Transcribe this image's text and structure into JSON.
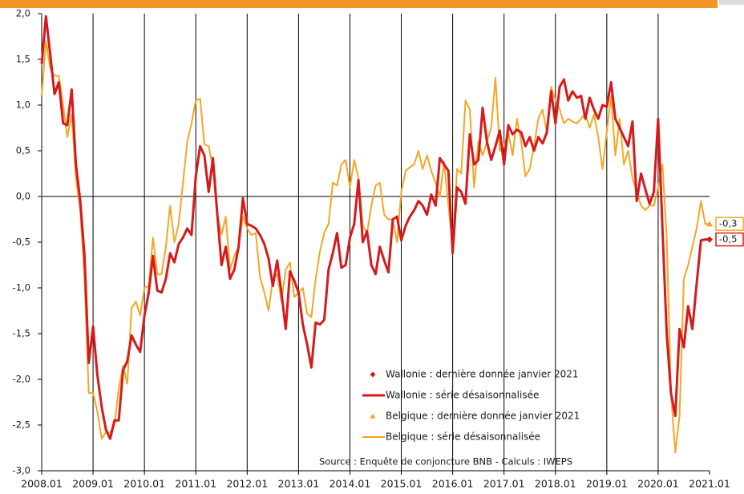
{
  "chart_data": {
    "type": "line",
    "categories": [
      "2008.01",
      null,
      null,
      null,
      null,
      null,
      null,
      null,
      null,
      null,
      null,
      null,
      "2009.01",
      null,
      null,
      null,
      null,
      null,
      null,
      null,
      null,
      null,
      null,
      null,
      "2010.01",
      null,
      null,
      null,
      null,
      null,
      null,
      null,
      null,
      null,
      null,
      null,
      "2011.01",
      null,
      null,
      null,
      null,
      null,
      null,
      null,
      null,
      null,
      null,
      null,
      "2012.01",
      null,
      null,
      null,
      null,
      null,
      null,
      null,
      null,
      null,
      null,
      null,
      "2013.01",
      null,
      null,
      null,
      null,
      null,
      null,
      null,
      null,
      null,
      null,
      null,
      "2014.01",
      null,
      null,
      null,
      null,
      null,
      null,
      null,
      null,
      null,
      null,
      null,
      "2015.01",
      null,
      null,
      null,
      null,
      null,
      null,
      null,
      null,
      null,
      null,
      null,
      "2016.01",
      null,
      null,
      null,
      null,
      null,
      null,
      null,
      null,
      null,
      null,
      null,
      "2017.01",
      null,
      null,
      null,
      null,
      null,
      null,
      null,
      null,
      null,
      null,
      null,
      "2018.01",
      null,
      null,
      null,
      null,
      null,
      null,
      null,
      null,
      null,
      null,
      null,
      "2019.01",
      null,
      null,
      null,
      null,
      null,
      null,
      null,
      null,
      null,
      null,
      null,
      "2020.01",
      null,
      null,
      null,
      null,
      null,
      null,
      null,
      null,
      null,
      null,
      null,
      "2021.01"
    ],
    "series": [
      {
        "name": "Wallonie : série désaisonnalisée",
        "color": "#d7191c",
        "values": [
          1.45,
          1.97,
          1.55,
          1.12,
          1.25,
          0.8,
          0.78,
          1.17,
          0.35,
          -0.05,
          -0.65,
          -1.82,
          -1.42,
          -1.95,
          -2.3,
          -2.55,
          -2.65,
          -2.45,
          -2.45,
          -1.9,
          -1.8,
          -1.52,
          -1.62,
          -1.7,
          -1.3,
          -1.05,
          -0.65,
          -1.03,
          -1.05,
          -0.9,
          -0.62,
          -0.72,
          -0.52,
          -0.45,
          -0.35,
          -0.42,
          0.22,
          0.55,
          0.45,
          0.05,
          0.42,
          -0.18,
          -0.75,
          -0.55,
          -0.9,
          -0.8,
          -0.55,
          -0.02,
          -0.3,
          -0.32,
          -0.35,
          -0.42,
          -0.52,
          -0.68,
          -0.98,
          -0.7,
          -1.05,
          -1.45,
          -0.82,
          -0.92,
          -1.05,
          -1.4,
          -1.62,
          -1.87,
          -1.38,
          -1.4,
          -1.35,
          -0.8,
          -0.62,
          -0.4,
          -0.78,
          -0.75,
          -0.45,
          -0.3,
          0.18,
          -0.5,
          -0.38,
          -0.75,
          -0.85,
          -0.55,
          -0.7,
          -0.83,
          -0.25,
          -0.22,
          -0.48,
          -0.32,
          -0.22,
          -0.15,
          -0.05,
          -0.1,
          -0.2,
          0.02,
          -0.1,
          0.42,
          0.35,
          0.28,
          -0.62,
          0.1,
          0.05,
          -0.08,
          0.68,
          0.35,
          0.4,
          0.97,
          0.6,
          0.4,
          0.55,
          0.72,
          0.35,
          0.78,
          0.68,
          0.73,
          0.7,
          0.55,
          0.65,
          0.5,
          0.65,
          0.58,
          0.7,
          1.15,
          0.8,
          1.2,
          1.28,
          1.05,
          1.15,
          1.08,
          1.1,
          0.85,
          1.08,
          0.95,
          0.85,
          1.0,
          0.98,
          1.25,
          0.85,
          0.75,
          0.65,
          0.55,
          0.82,
          -0.05,
          0.25,
          0.08,
          -0.08,
          0.05,
          0.85,
          -0.35,
          -1.5,
          -2.15,
          -2.4,
          -1.45,
          -1.65,
          -1.2,
          -1.45,
          -0.95,
          -0.48,
          -0.47,
          -0.47
        ]
      },
      {
        "name": "Belgique : série désaisonnalisée",
        "color": "#f5a623",
        "values": [
          1.1,
          1.7,
          1.4,
          1.32,
          1.32,
          1.0,
          0.65,
          0.9,
          0.2,
          -0.15,
          -0.9,
          -2.15,
          -2.15,
          -2.35,
          -2.65,
          -2.58,
          -2.58,
          -2.5,
          -2.1,
          -1.85,
          -2.05,
          -1.22,
          -1.15,
          -1.3,
          -1.0,
          -0.98,
          -0.45,
          -0.85,
          -0.85,
          -0.55,
          -0.1,
          -0.5,
          -0.3,
          0.15,
          0.6,
          0.8,
          1.05,
          1.07,
          0.57,
          0.55,
          0.32,
          -0.2,
          -0.42,
          -0.22,
          -0.8,
          -0.65,
          -0.55,
          -0.22,
          -0.35,
          -0.42,
          -0.4,
          -0.88,
          -1.05,
          -1.25,
          -0.9,
          -0.85,
          -1.15,
          -0.8,
          -0.72,
          -1.1,
          -1.05,
          -1.0,
          -1.28,
          -1.32,
          -0.9,
          -0.6,
          -0.4,
          -0.3,
          0.15,
          0.12,
          0.35,
          0.4,
          0.1,
          0.4,
          0.2,
          -0.32,
          -0.4,
          -0.1,
          0.12,
          0.15,
          -0.2,
          -0.25,
          -0.25,
          -0.5,
          0.05,
          0.28,
          0.32,
          0.35,
          0.5,
          0.3,
          0.45,
          0.28,
          0.15,
          0.0,
          0.38,
          -0.1,
          -0.55,
          0.3,
          0.25,
          1.05,
          0.95,
          0.1,
          0.6,
          0.45,
          0.6,
          0.75,
          1.3,
          0.5,
          0.55,
          0.7,
          0.45,
          0.85,
          0.6,
          0.22,
          0.3,
          0.55,
          0.85,
          0.95,
          0.7,
          1.2,
          1.05,
          0.95,
          0.8,
          0.85,
          0.82,
          0.8,
          0.85,
          0.9,
          0.75,
          0.9,
          0.65,
          0.3,
          0.7,
          1.1,
          0.45,
          0.85,
          0.35,
          0.5,
          0.2,
          0.05,
          -0.1,
          -0.15,
          -0.1,
          -0.1,
          0.1,
          0.35,
          -0.45,
          -2.15,
          -2.8,
          -2.4,
          -0.9,
          -0.75,
          -0.55,
          -0.35,
          -0.05,
          -0.3,
          -0.3
        ]
      }
    ],
    "latest": [
      {
        "name": "Wallonie : dernière donnée janvier 2021",
        "color": "#d7191c",
        "marker": "diamond",
        "category": "2021.01",
        "value": -0.47,
        "value_label": "-0,5"
      },
      {
        "name": "Belgique : dernière donnée janvier 2021",
        "color": "#f5a623",
        "marker": "triangle",
        "category": "2021.01",
        "value": -0.3,
        "value_label": "-0,3"
      }
    ],
    "annotation": "Source : Enquête de conjoncture BNB - Calculs : IWEPS",
    "ylim": [
      -3,
      2
    ],
    "yticks": [
      {
        "value": -3,
        "label": "-3,0"
      },
      {
        "value": -2.5,
        "label": "-2,5"
      },
      {
        "value": -2,
        "label": "-2,0"
      },
      {
        "value": -1.5,
        "label": "-1,5"
      },
      {
        "value": -1,
        "label": "-1,0"
      },
      {
        "value": -0.5,
        "label": "-0,5"
      },
      {
        "value": 0,
        "label": "0,0"
      },
      {
        "value": 0.5,
        "label": "0,5"
      },
      {
        "value": 1,
        "label": "1,0"
      },
      {
        "value": 1.5,
        "label": "1,5"
      },
      {
        "value": 2,
        "label": "2,0"
      }
    ],
    "vertical_grid": true
  }
}
